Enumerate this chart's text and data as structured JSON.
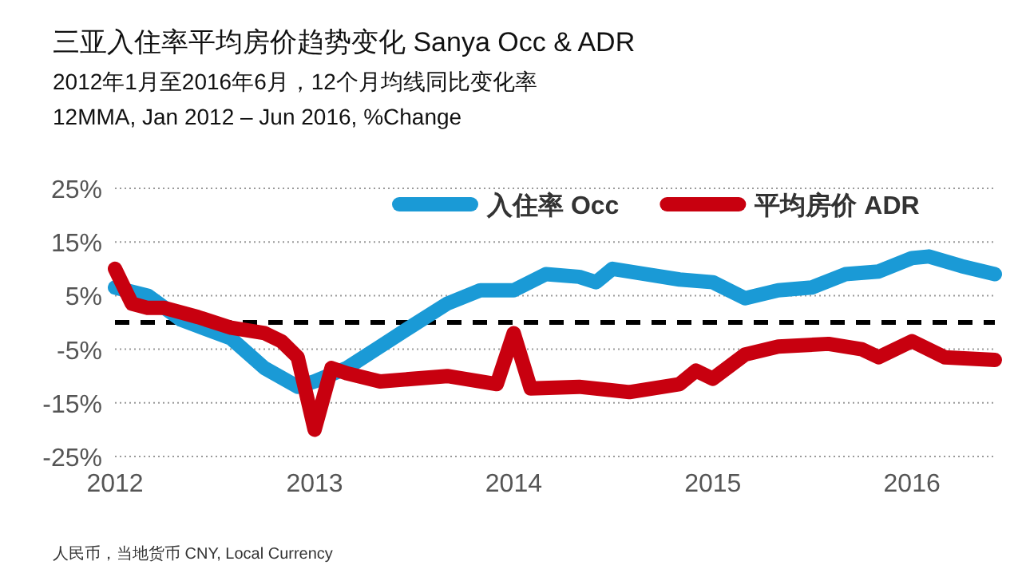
{
  "chart_data": {
    "type": "line",
    "title": "三亚入住率平均房价趋势变化 Sanya Occ & ADR",
    "subtitle": "2012年1月至2016年6月，12个月均线同比变化率\n12MMA, Jan 2012 – Jun 2016, %Change",
    "annotations": [
      "人民币，当地货币 CNY, Local Currency"
    ],
    "xlim": [
      "2012-01",
      "2016-06"
    ],
    "xticks": [
      {
        "value": "2012-01",
        "label": "2012"
      },
      {
        "value": "2013-01",
        "label": "2013"
      },
      {
        "value": "2014-01",
        "label": "2014"
      },
      {
        "value": "2015-01",
        "label": "2015"
      },
      {
        "value": "2016-01",
        "label": "2016"
      }
    ],
    "ylim": [
      -25,
      25
    ],
    "yticks": [
      {
        "value": 25,
        "label": "25%"
      },
      {
        "value": 15,
        "label": "15%"
      },
      {
        "value": 5,
        "label": "5%"
      },
      {
        "value": -5,
        "label": "-5%"
      },
      {
        "value": -15,
        "label": "-15%"
      },
      {
        "value": -25,
        "label": "-25%"
      }
    ],
    "grid": "y",
    "legend": "top",
    "line_style": "solid",
    "ref_lines": [
      {
        "axis": "y",
        "value": 0,
        "color": "#000000",
        "line_style": "dashed"
      }
    ],
    "series": [
      {
        "name": "入住率 Occ",
        "color": "#1a9ad6",
        "x": [
          "2012-01",
          "2012-03",
          "2012-05",
          "2012-08",
          "2012-10",
          "2012-12",
          "2013-01",
          "2013-03",
          "2013-05",
          "2013-07",
          "2013-09",
          "2013-11",
          "2014-01",
          "2014-03",
          "2014-05",
          "2014-06",
          "2014-07",
          "2014-09",
          "2014-11",
          "2015-01",
          "2015-03",
          "2015-05",
          "2015-07",
          "2015-09",
          "2015-11",
          "2016-01",
          "2016-02",
          "2016-04",
          "2016-06"
        ],
        "values": [
          6.5,
          5,
          0.5,
          -3,
          -8.5,
          -12,
          -11,
          -8.5,
          -4.5,
          -0.5,
          3.5,
          6,
          6,
          9,
          8.5,
          7.5,
          10,
          9,
          8,
          7.5,
          4.5,
          6,
          6.5,
          9,
          9.5,
          12,
          12.3,
          10.5,
          9
        ]
      },
      {
        "name": "平均房价 ADR",
        "color": "#c8000f",
        "x": [
          "2012-01",
          "2012-02",
          "2012-03",
          "2012-04",
          "2012-06",
          "2012-08",
          "2012-10",
          "2012-11",
          "2012-12",
          "2013-01",
          "2013-02",
          "2013-03",
          "2013-05",
          "2013-09",
          "2013-12",
          "2014-01",
          "2014-02",
          "2014-05",
          "2014-08",
          "2014-11",
          "2014-12",
          "2015-01",
          "2015-03",
          "2015-05",
          "2015-08",
          "2015-10",
          "2015-11",
          "2016-01",
          "2016-03",
          "2016-06"
        ],
        "values": [
          10,
          3.5,
          2.7,
          2.7,
          1,
          -1,
          -2,
          -3.5,
          -6.5,
          -20,
          -8.5,
          -9.5,
          -11,
          -10,
          -11.5,
          -2,
          -12.3,
          -12,
          -13,
          -11.5,
          -9,
          -10.5,
          -6,
          -4.5,
          -4,
          -5,
          -6.5,
          -3.5,
          -6.5,
          -7
        ]
      }
    ]
  }
}
